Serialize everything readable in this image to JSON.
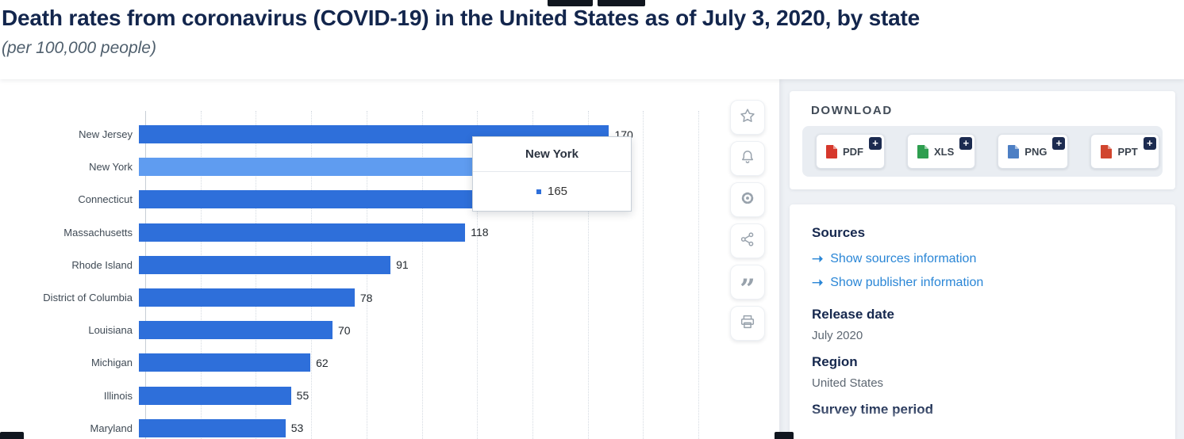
{
  "page": {
    "title": "Death rates from coronavirus (COVID-19) in the United States as of July 3, 2020, by state",
    "subtitle": "(per 100,000 people)"
  },
  "chart_data": {
    "type": "bar",
    "orientation": "horizontal",
    "title": "Death rates from coronavirus (COVID-19) in the United States as of July 3, 2020, by state",
    "unit": "(per 100,000 people)",
    "categories": [
      "New Jersey",
      "New York",
      "Connecticut",
      "Massachusetts",
      "Rhode Island",
      "District of Columbia",
      "Louisiana",
      "Michigan",
      "Illinois",
      "Maryland"
    ],
    "values": [
      170,
      165,
      125,
      118,
      91,
      78,
      70,
      62,
      55,
      53
    ],
    "xlim": [
      0,
      200
    ],
    "grid_step": 20,
    "grid": true,
    "legend": false,
    "bar_color": "#2e6fda",
    "highlight_index": 1,
    "highlight_color": "#5f9cf0",
    "tooltip": {
      "title": "New York",
      "value": "165",
      "bullet_color": "#2e6fda"
    }
  },
  "toolbar": {
    "icons": [
      {
        "name": "favorite-icon"
      },
      {
        "name": "alerts-icon"
      },
      {
        "name": "settings-icon"
      },
      {
        "name": "share-icon"
      },
      {
        "name": "citation-icon"
      },
      {
        "name": "print-icon"
      }
    ]
  },
  "download": {
    "heading": "DOWNLOAD",
    "plus_label": "+",
    "buttons": [
      {
        "label": "PDF",
        "icon_color": "#d6382c"
      },
      {
        "label": "XLS",
        "icon_color": "#2e9e4f"
      },
      {
        "label": "PNG",
        "icon_color": "#4d7fc4"
      },
      {
        "label": "PPT",
        "icon_color": "#d1452e"
      }
    ]
  },
  "info": {
    "sources_heading": "Sources",
    "link_arrow": "➝",
    "links": [
      {
        "label": "Show sources information"
      },
      {
        "label": "Show publisher information"
      }
    ],
    "fields": [
      {
        "label": "Release date",
        "value": "July 2020"
      },
      {
        "label": "Region",
        "value": "United States"
      },
      {
        "label": "Survey time period",
        "value": ""
      }
    ],
    "link_color": "#2a86d6"
  }
}
